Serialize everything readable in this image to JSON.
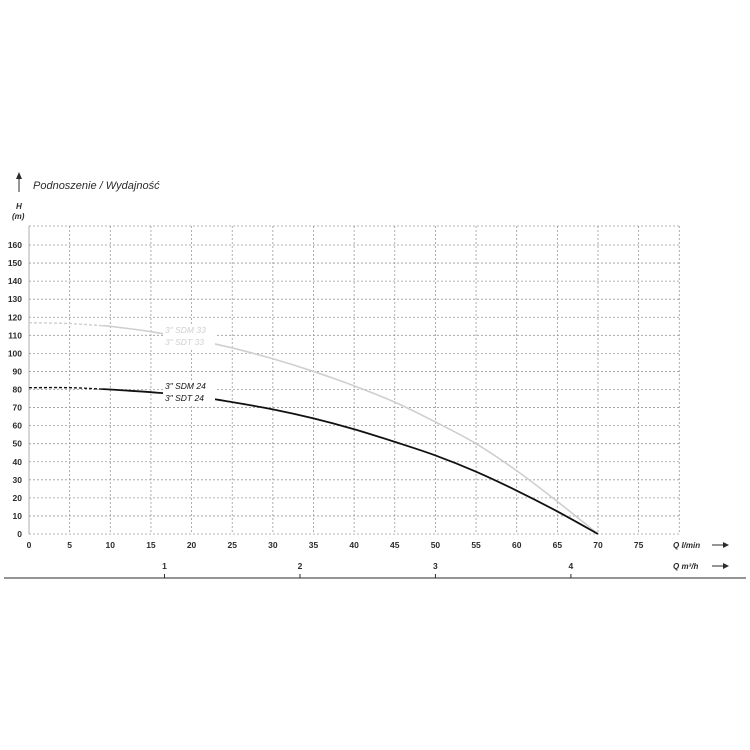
{
  "chart_data": {
    "type": "line",
    "title": "Podnoszenie / Wydajność",
    "ylabel": "H",
    "yunit": "(m)",
    "xlabel": "Q l/min",
    "x2label": "Q m³/h",
    "xlim": [
      0,
      80
    ],
    "ylim": [
      0,
      170
    ],
    "x_ticks": [
      0,
      5,
      10,
      15,
      20,
      25,
      30,
      35,
      40,
      45,
      50,
      55,
      60,
      65,
      70,
      75
    ],
    "y_ticks": [
      0,
      10,
      20,
      30,
      40,
      50,
      60,
      70,
      80,
      90,
      100,
      110,
      120,
      130,
      140,
      150,
      160
    ],
    "x2_ticks": [
      1,
      2,
      3,
      4
    ],
    "grid": true,
    "series": [
      {
        "name": "3\" SDM 33 / 3\" SDT 33",
        "label_lines": [
          "3\" SDM 33",
          "3\" SDT 33"
        ],
        "color": "#cfcfcf",
        "x": [
          0,
          5,
          10,
          15,
          20,
          25,
          30,
          35,
          40,
          45,
          50,
          55,
          60,
          65,
          70
        ],
        "y": [
          117,
          116.5,
          115,
          112,
          108,
          103,
          97,
          90,
          82,
          73,
          62,
          50,
          35,
          18,
          0
        ],
        "dashed_until_x": 9
      },
      {
        "name": "3\" SDM 24 / 3\" SDT 24",
        "label_lines": [
          "3\" SDM 24",
          "3\" SDT 24"
        ],
        "color": "#111111",
        "x": [
          0,
          5,
          10,
          15,
          20,
          25,
          30,
          35,
          40,
          45,
          50,
          55,
          60,
          65,
          70
        ],
        "y": [
          81,
          81,
          80,
          78.5,
          76.5,
          73,
          69,
          64,
          58,
          51,
          43.5,
          34.5,
          24,
          12.5,
          0
        ],
        "dashed_until_x": 9
      }
    ]
  }
}
